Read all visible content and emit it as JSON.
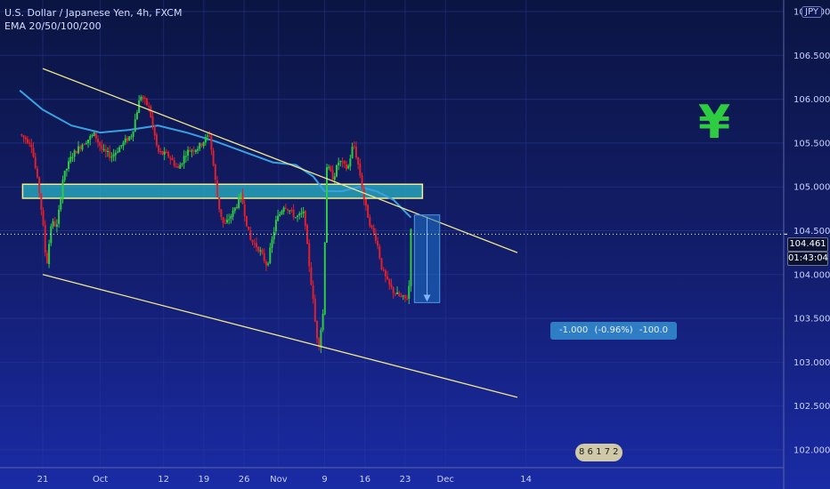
{
  "legend": {
    "symbol_line": "U.S. Dollar / Japanese Yen, 4h, FXCM",
    "indicator_line": "EMA 20/50/100/200"
  },
  "currency_badge": "JPY",
  "yen_sign": "¥",
  "last_price_tag": "104.461",
  "countdown_tag": "01:43:04",
  "measure_tool": {
    "change": "-1.000",
    "percent": "(-0.96%)",
    "ticks": "-100.0"
  },
  "indicator_pill": "8 6 1 7 2",
  "colors": {
    "background_top": "#0b1542",
    "background_bottom": "#1a2ba6",
    "up_candle": "#2ecc40",
    "down_candle": "#e0202a",
    "trendline": "#f0e68c",
    "ema": "#3aa0e0",
    "resistance_zone": "#2ab6c6",
    "measure": "#1e73c8",
    "yen_sign": "#2ecc40"
  },
  "chart_data": {
    "type": "candlestick",
    "title": "U.S. Dollar / Japanese Yen, 4h, FXCM",
    "ylim": [
      102.0,
      107.0
    ],
    "y_ticks": [
      {
        "value": 107.0,
        "label": "107.000"
      },
      {
        "value": 106.5,
        "label": "106.500"
      },
      {
        "value": 106.0,
        "label": "106.000"
      },
      {
        "value": 105.5,
        "label": "105.500"
      },
      {
        "value": 105.0,
        "label": "105.000"
      },
      {
        "value": 104.5,
        "label": "104.500"
      },
      {
        "value": 104.0,
        "label": "104.000"
      },
      {
        "value": 103.5,
        "label": "103.500"
      },
      {
        "value": 103.0,
        "label": "103.000"
      },
      {
        "value": 102.5,
        "label": "102.500"
      },
      {
        "value": 102.0,
        "label": "102.000"
      }
    ],
    "x_ticks": [
      {
        "day": 0,
        "label": "21"
      },
      {
        "day": 10,
        "label": "Oct"
      },
      {
        "day": 21,
        "label": "12"
      },
      {
        "day": 28,
        "label": "19"
      },
      {
        "day": 35,
        "label": "26"
      },
      {
        "day": 41,
        "label": "Nov"
      },
      {
        "day": 49,
        "label": "9"
      },
      {
        "day": 56,
        "label": "16"
      },
      {
        "day": 63,
        "label": "23"
      },
      {
        "day": 70,
        "label": "Dec"
      },
      {
        "day": 84,
        "label": "14"
      }
    ],
    "x_range_days": [
      -4.0,
      89.0
    ],
    "close_path": [
      [
        -4.0,
        105.6
      ],
      [
        -2.0,
        105.5
      ],
      [
        -0.5,
        104.9
      ],
      [
        0.3,
        104.4
      ],
      [
        0.6,
        104.05
      ],
      [
        1.5,
        104.6
      ],
      [
        2.5,
        104.55
      ],
      [
        3.5,
        105.1
      ],
      [
        5.0,
        105.35
      ],
      [
        7.0,
        105.5
      ],
      [
        9.0,
        105.6
      ],
      [
        10.5,
        105.4
      ],
      [
        12.0,
        105.35
      ],
      [
        14.0,
        105.5
      ],
      [
        15.5,
        105.6
      ],
      [
        17.0,
        106.05
      ],
      [
        18.5,
        105.9
      ],
      [
        20.0,
        105.4
      ],
      [
        22.0,
        105.35
      ],
      [
        23.5,
        105.2
      ],
      [
        25.0,
        105.4
      ],
      [
        27.0,
        105.45
      ],
      [
        29.0,
        105.6
      ],
      [
        30.5,
        104.8
      ],
      [
        31.5,
        104.55
      ],
      [
        33.0,
        104.7
      ],
      [
        34.5,
        104.9
      ],
      [
        36.0,
        104.4
      ],
      [
        37.5,
        104.3
      ],
      [
        39.0,
        104.1
      ],
      [
        40.5,
        104.6
      ],
      [
        42.0,
        104.8
      ],
      [
        44.0,
        104.65
      ],
      [
        45.5,
        104.7
      ],
      [
        46.0,
        104.3
      ],
      [
        47.0,
        103.7
      ],
      [
        47.5,
        103.35
      ],
      [
        48.0,
        103.2
      ],
      [
        48.8,
        103.6
      ],
      [
        49.3,
        105.25
      ],
      [
        50.5,
        105.1
      ],
      [
        51.5,
        105.3
      ],
      [
        53.0,
        105.2
      ],
      [
        54.0,
        105.5
      ],
      [
        55.0,
        105.2
      ],
      [
        56.0,
        104.8
      ],
      [
        57.0,
        104.55
      ],
      [
        58.0,
        104.4
      ],
      [
        59.0,
        104.05
      ],
      [
        60.0,
        103.9
      ],
      [
        61.0,
        103.8
      ],
      [
        62.0,
        103.75
      ],
      [
        63.0,
        103.72
      ],
      [
        63.6,
        103.75
      ],
      [
        64.0,
        104.55
      ]
    ],
    "ema_path": [
      [
        -4.0,
        106.1
      ],
      [
        0.0,
        105.88
      ],
      [
        5.0,
        105.7
      ],
      [
        10.0,
        105.62
      ],
      [
        15.0,
        105.65
      ],
      [
        20.0,
        105.7
      ],
      [
        25.0,
        105.62
      ],
      [
        30.0,
        105.52
      ],
      [
        35.0,
        105.4
      ],
      [
        40.0,
        105.28
      ],
      [
        44.0,
        105.25
      ],
      [
        47.0,
        105.12
      ],
      [
        49.0,
        104.95
      ],
      [
        52.0,
        104.95
      ],
      [
        55.0,
        105.0
      ],
      [
        58.0,
        104.95
      ],
      [
        61.0,
        104.85
      ],
      [
        64.0,
        104.65
      ]
    ],
    "trendlines": [
      {
        "name": "upper",
        "from": [
          0.0,
          106.35
        ],
        "to": [
          82.5,
          104.25
        ]
      },
      {
        "name": "lower",
        "from": [
          0.0,
          104.0
        ],
        "to": [
          82.5,
          102.6
        ]
      }
    ],
    "zone": {
      "y_top": 105.03,
      "y_bottom": 104.87,
      "x_from": -3.5,
      "x_to": 66.0
    },
    "measure": {
      "from_day": 64.6,
      "to_day": 69.0,
      "from_value": 104.68,
      "to_value": 103.68
    },
    "last_price": 104.461
  }
}
